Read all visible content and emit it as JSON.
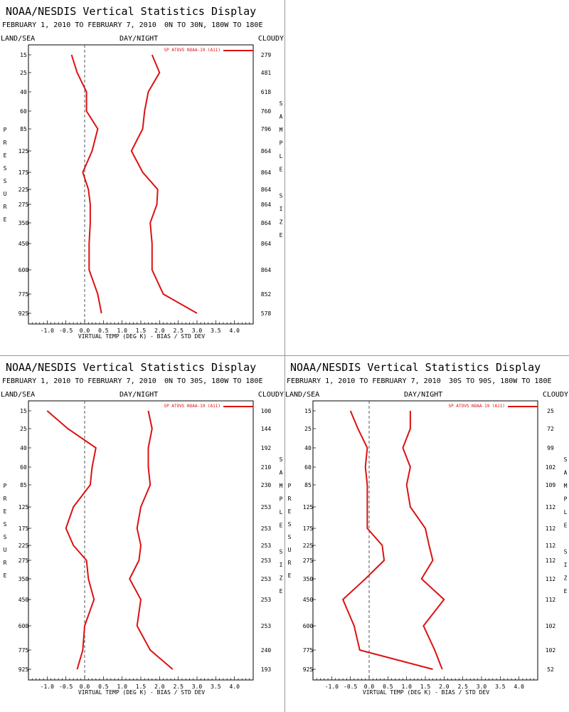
{
  "panels": [
    {
      "title": "NOAA/NESDIS Vertical Statistics Display",
      "period": "FEBRUARY 1, 2010 TO FEBRUARY 7, 2010",
      "region": "0N TO 30N, 180W TO 180E",
      "left_header": "LAND/SEA",
      "center_header": "DAY/NIGHT",
      "right_header": "CLOUDY",
      "xlabel": "VIRTUAL TEMP (DEG K) - BIAS / STD DEV",
      "left_vertical": "PRESSURE",
      "right_vertical": "SAMPLE SIZE",
      "chart_data": {
        "type": "line",
        "x_ticks": [
          "-1.0",
          "-0.5",
          "0.0",
          "0.5",
          "1.0",
          "1.5",
          "2.0",
          "2.5",
          "3.0",
          "3.5",
          "4.0"
        ],
        "xlim": [
          -1.5,
          4.5
        ],
        "pressure_levels": [
          "15",
          "25",
          "40",
          "60",
          "85",
          "125",
          "175",
          "225",
          "275",
          "350",
          "450",
          "600",
          "775",
          "925"
        ],
        "sample_size": [
          "279",
          "481",
          "618",
          "760",
          "796",
          "864",
          "864",
          "864",
          "864",
          "864",
          "864",
          "864",
          "852",
          "578"
        ],
        "legend": "SP ATOVS NOAA-19 (A11)",
        "color": "#dd1111",
        "bias": [
          -0.35,
          -0.2,
          0.05,
          0.05,
          0.35,
          0.2,
          -0.05,
          0.1,
          0.15,
          0.15,
          0.12,
          0.12,
          0.35,
          0.45
        ],
        "std_dev": [
          1.8,
          2.0,
          1.7,
          1.6,
          1.55,
          1.25,
          1.55,
          1.95,
          1.93,
          1.75,
          1.8,
          1.8,
          2.1,
          3.0
        ]
      }
    },
    {
      "title": "NOAA/NESDIS Vertical Statistics Display",
      "period": "FEBRUARY 1, 2010 TO FEBRUARY 7, 2010",
      "region": "0N TO 30S, 180W TO 180E",
      "left_header": "LAND/SEA",
      "center_header": "DAY/NIGHT",
      "right_header": "CLOUDY",
      "xlabel": "VIRTUAL TEMP (DEG K) - BIAS / STD DEV",
      "left_vertical": "PRESSURE",
      "right_vertical": "SAMPLE SIZE",
      "chart_data": {
        "type": "line",
        "x_ticks": [
          "-1.0",
          "-0.5",
          "0.0",
          "0.5",
          "1.0",
          "1.5",
          "2.0",
          "2.5",
          "3.0",
          "3.5",
          "4.0"
        ],
        "xlim": [
          -1.5,
          4.5
        ],
        "pressure_levels": [
          "15",
          "25",
          "40",
          "60",
          "85",
          "125",
          "175",
          "225",
          "275",
          "350",
          "450",
          "600",
          "775",
          "925"
        ],
        "sample_size": [
          "100",
          "144",
          "192",
          "210",
          "230",
          "253",
          "253",
          "253",
          "253",
          "253",
          "253",
          "253",
          "240",
          "193"
        ],
        "legend": "SP ATOVS NOAA-19 (A11)",
        "color": "#dd1111",
        "bias": [
          -1.0,
          -0.45,
          0.3,
          0.2,
          0.15,
          -0.3,
          -0.5,
          -0.3,
          0.05,
          0.1,
          0.25,
          0.0,
          -0.05,
          -0.2
        ],
        "std_dev": [
          1.7,
          1.8,
          1.7,
          1.7,
          1.75,
          1.5,
          1.4,
          1.5,
          1.45,
          1.2,
          1.5,
          1.4,
          1.75,
          2.35
        ]
      }
    },
    {
      "title": "NOAA/NESDIS Vertical Statistics Display",
      "period": "FEBRUARY 1, 2010 TO FEBRUARY 7, 2010",
      "region": "30S TO 90S, 180W TO 180E",
      "left_header": "LAND/SEA",
      "center_header": "DAY/NIGHT",
      "right_header": "CLOUDY",
      "xlabel": "VIRTUAL TEMP (DEG K) - BIAS / STD DEV",
      "left_vertical": "PRESSURE",
      "right_vertical": "SAMPLE SIZE",
      "chart_data": {
        "type": "line",
        "x_ticks": [
          "-1.0",
          "-0.5",
          "0.0",
          "0.5",
          "1.0",
          "1.5",
          "2.0",
          "2.5",
          "3.0",
          "3.5",
          "4.0"
        ],
        "xlim": [
          -1.5,
          4.5
        ],
        "pressure_levels": [
          "15",
          "25",
          "40",
          "60",
          "85",
          "125",
          "175",
          "225",
          "275",
          "350",
          "450",
          "600",
          "775",
          "925"
        ],
        "sample_size": [
          "25",
          "72",
          "99",
          "102",
          "109",
          "112",
          "112",
          "112",
          "112",
          "112",
          "112",
          "102",
          "102",
          "52"
        ],
        "legend": "SP ATOVS NOAA-19 (A11)",
        "color": "#dd1111",
        "bias": [
          -0.5,
          -0.3,
          -0.05,
          -0.1,
          -0.05,
          -0.05,
          -0.05,
          0.35,
          0.4,
          -0.1,
          -0.7,
          -0.4,
          -0.25,
          1.7
        ],
        "std_dev": [
          1.1,
          1.1,
          0.9,
          1.1,
          1.0,
          1.1,
          1.5,
          1.6,
          1.7,
          1.4,
          2.0,
          1.45,
          1.75,
          1.95
        ]
      }
    }
  ]
}
